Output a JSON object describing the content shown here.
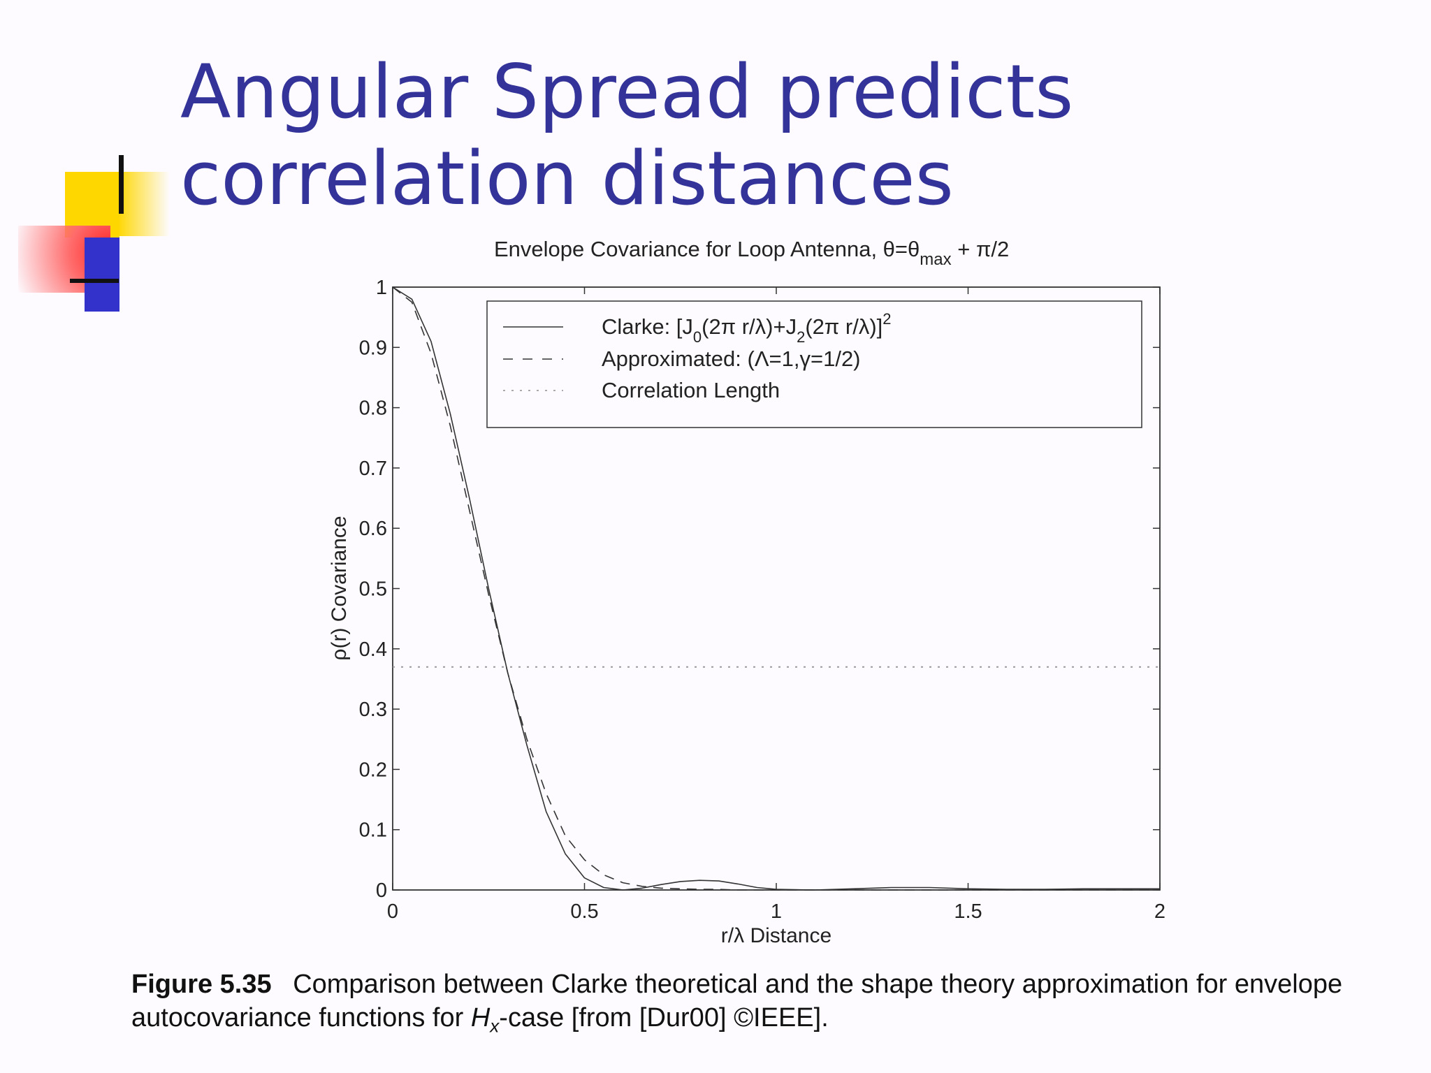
{
  "slide": {
    "title": "Angular Spread predicts correlation distances"
  },
  "chart_data": {
    "type": "line",
    "title": "Envelope Covariance for Loop Antenna, θ=θ",
    "title_sub": "max",
    "title_suffix": " + π/2",
    "xlabel": "r/λ  Distance",
    "ylabel": "ρ(r)  Covariance",
    "xlim": [
      0,
      2
    ],
    "ylim": [
      0,
      1
    ],
    "xticks": [
      "0",
      "0.5",
      "1",
      "1.5",
      "2"
    ],
    "yticks": [
      "0",
      "0.1",
      "0.2",
      "0.3",
      "0.4",
      "0.5",
      "0.6",
      "0.7",
      "0.8",
      "0.9",
      "1"
    ],
    "grid": false,
    "legend_position": "top-right",
    "legend": {
      "clarke": {
        "a": "Clarke: [J",
        "s1": "0",
        "b": "(2π r/λ)+J",
        "s2": "2",
        "c": "(2π r/λ)]",
        "sup": "2"
      },
      "approx": "Approximated: (Λ=1,γ=1/2)",
      "corr": "Correlation Length"
    },
    "series": [
      {
        "style": "solid",
        "x": [
          0,
          0.05,
          0.1,
          0.15,
          0.2,
          0.25,
          0.3,
          0.35,
          0.4,
          0.45,
          0.5,
          0.55,
          0.6,
          0.65,
          0.7,
          0.75,
          0.8,
          0.85,
          0.9,
          0.95,
          1.0,
          1.1,
          1.2,
          1.3,
          1.4,
          1.5,
          1.6,
          1.7,
          1.8,
          1.9,
          2.0
        ],
        "y": [
          1.0,
          0.98,
          0.91,
          0.79,
          0.65,
          0.5,
          0.36,
          0.24,
          0.13,
          0.06,
          0.02,
          0.004,
          0.0,
          0.003,
          0.009,
          0.014,
          0.016,
          0.015,
          0.01,
          0.004,
          0.001,
          0.0,
          0.002,
          0.004,
          0.004,
          0.002,
          0.001,
          0.001,
          0.002,
          0.002,
          0.002
        ]
      },
      {
        "style": "dashed",
        "x": [
          0,
          0.05,
          0.1,
          0.15,
          0.2,
          0.25,
          0.3,
          0.35,
          0.4,
          0.45,
          0.5,
          0.55,
          0.6,
          0.65,
          0.7,
          0.75,
          0.8,
          0.85,
          0.9,
          1.0,
          1.2,
          1.4,
          1.6,
          1.8,
          2.0
        ],
        "y": [
          1.0,
          0.975,
          0.89,
          0.77,
          0.63,
          0.49,
          0.36,
          0.25,
          0.16,
          0.09,
          0.05,
          0.025,
          0.012,
          0.006,
          0.003,
          0.002,
          0.001,
          0.001,
          0.0,
          0.0,
          0.0,
          0.0,
          0.0,
          0.0,
          0.0
        ]
      },
      {
        "style": "dotted",
        "x": [
          0,
          2
        ],
        "y": [
          0.37,
          0.37
        ]
      }
    ]
  },
  "figure_caption": {
    "label": "Figure 5.35",
    "t1": "Comparison between Clarke theoretical and the shape theory approximation for envelope autocovariance functions for ",
    "h": "H",
    "hsub": "x",
    "t2": "-case [from [Dur00] ©IEEE]."
  }
}
